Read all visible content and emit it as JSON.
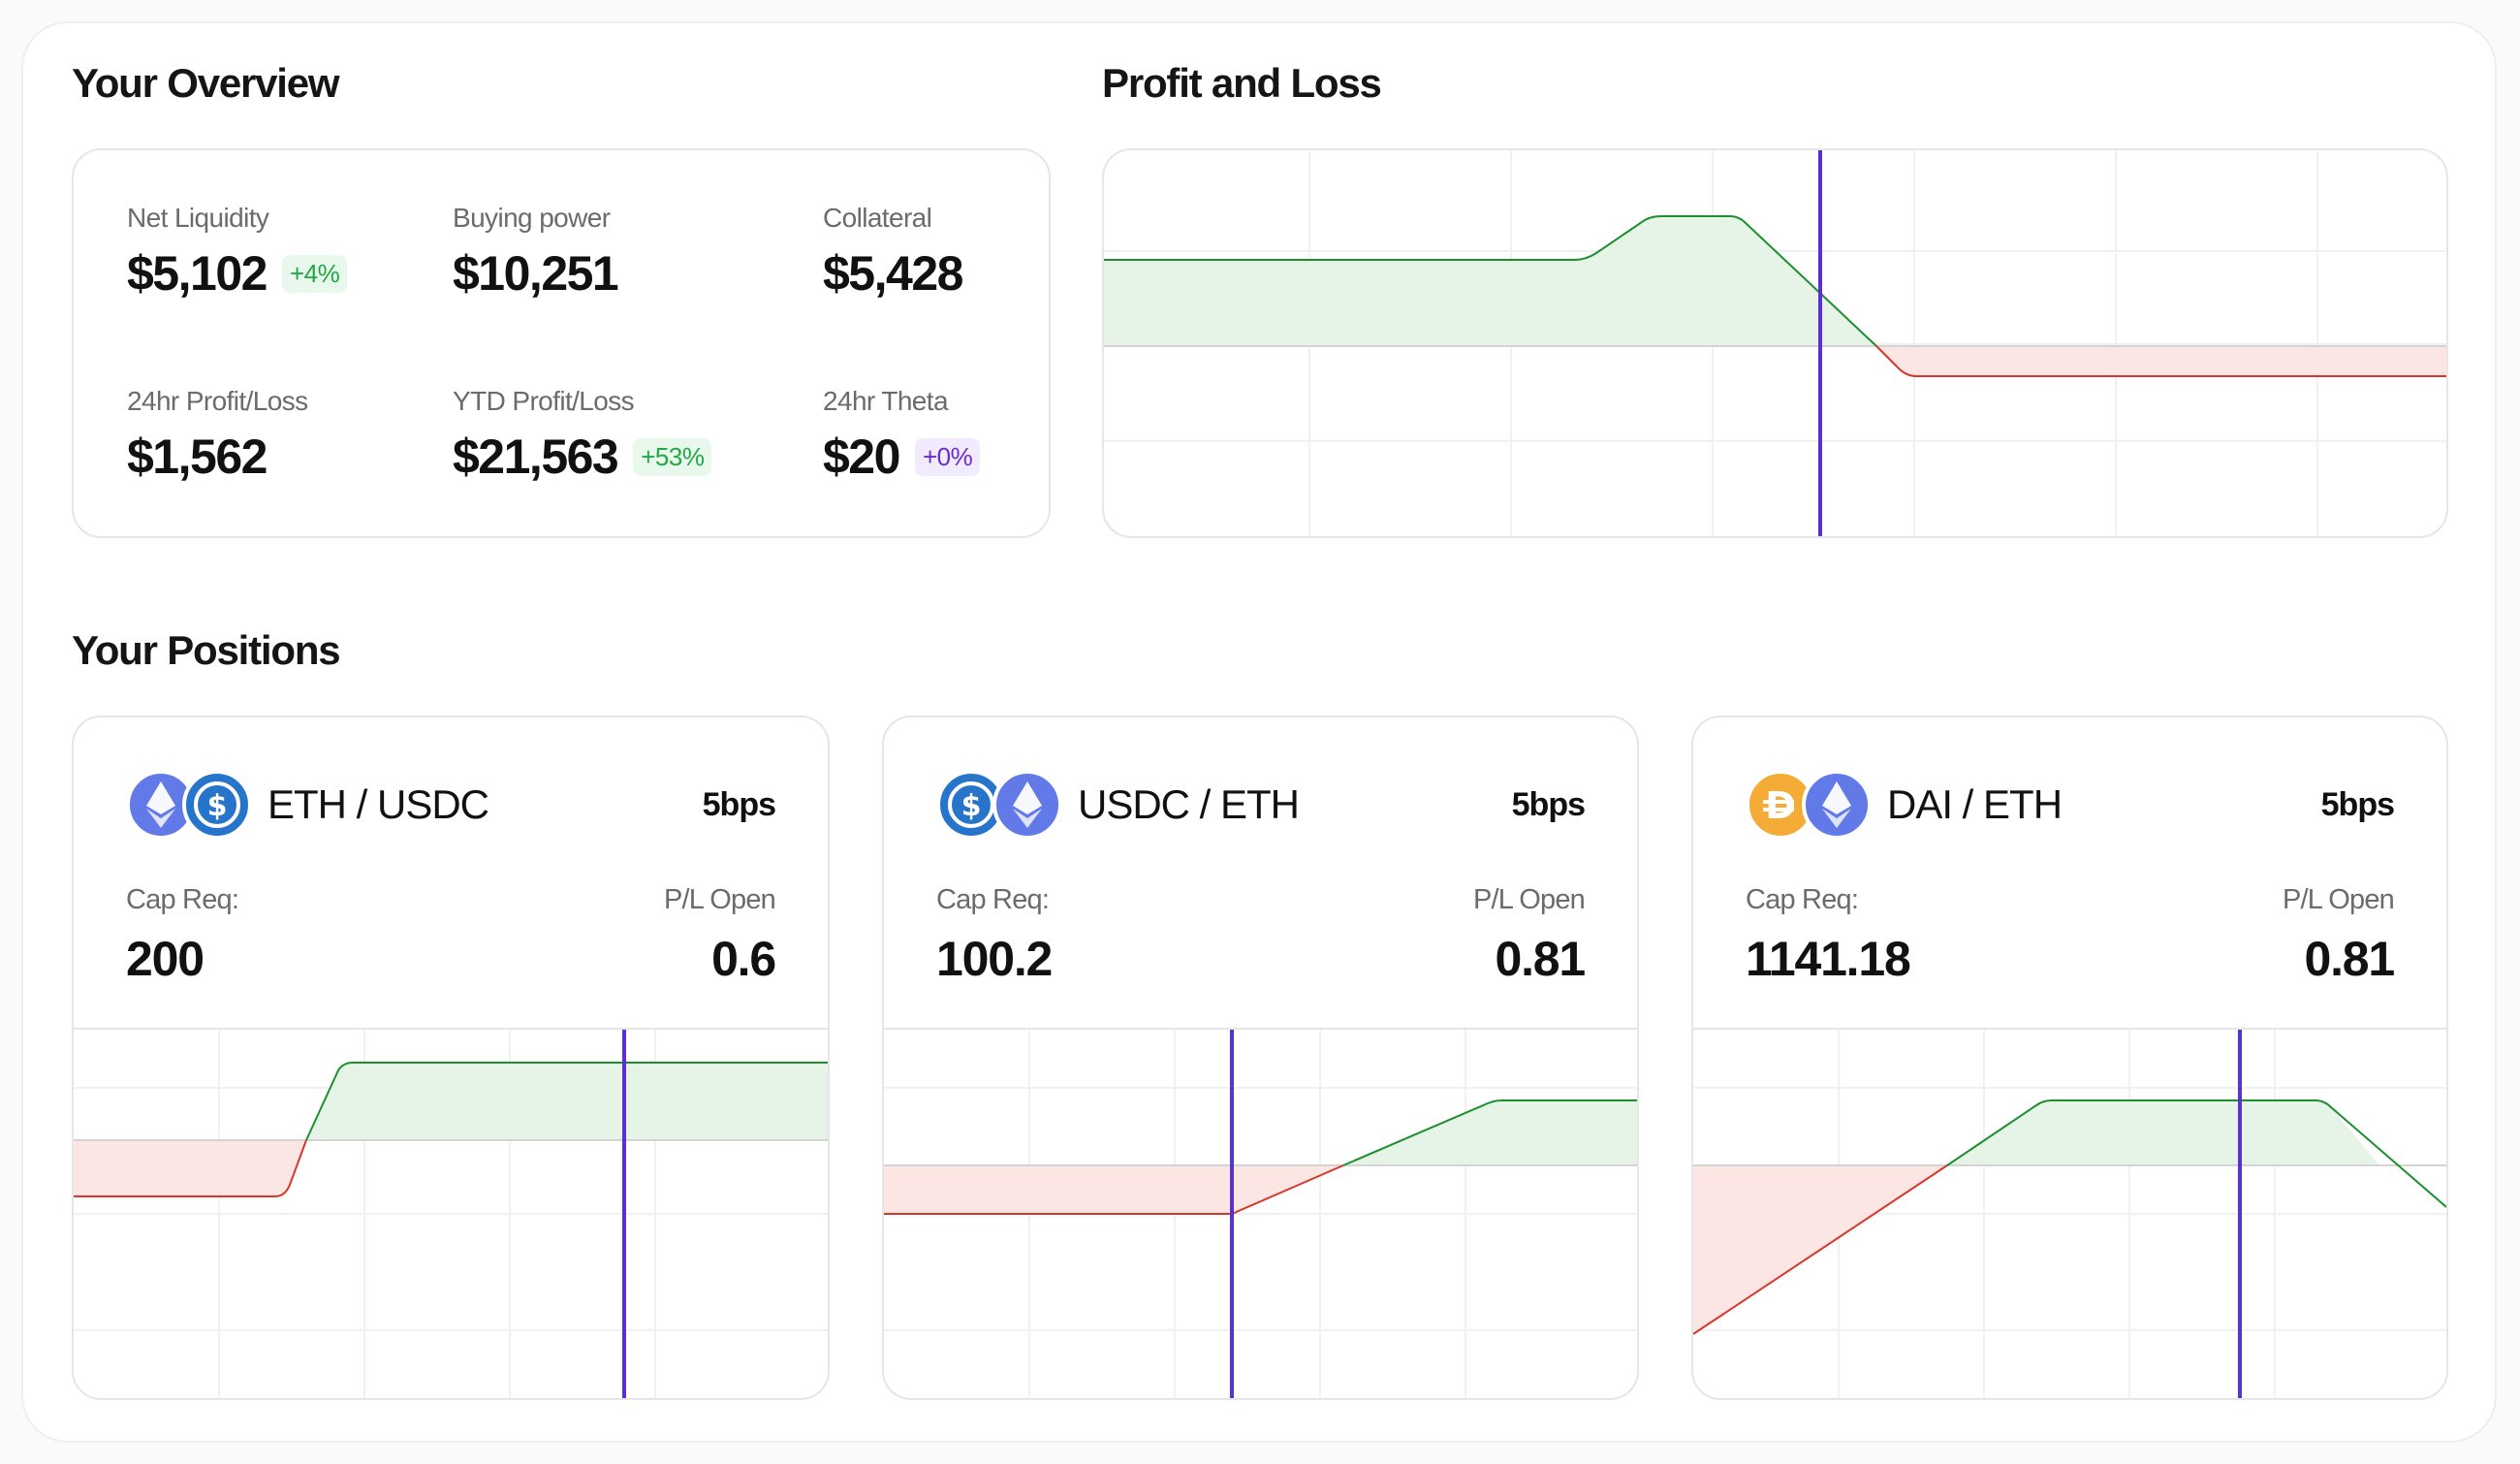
{
  "overview": {
    "title": "Your Overview",
    "stats": [
      {
        "label": "Net Liquidity",
        "value": "$5,102",
        "badge": "+4%",
        "badge_color": "green"
      },
      {
        "label": "Buying power",
        "value": "$10,251"
      },
      {
        "label": "Collateral",
        "value": "$5,428"
      },
      {
        "label": "24hr Profit/Loss",
        "value": "$1,562"
      },
      {
        "label": "YTD Profit/Loss",
        "value": "$21,563",
        "badge": "+53%",
        "badge_color": "green"
      },
      {
        "label": "24hr Theta",
        "value": "$20",
        "badge": "+0%",
        "badge_color": "purple"
      }
    ]
  },
  "pnl": {
    "title": "Profit and Loss"
  },
  "positions": {
    "title": "Your Positions",
    "cap_label": "Cap Req:",
    "pl_label": "P/L Open",
    "items": [
      {
        "pair": "ETH / USDC",
        "fee": "5bps",
        "cap": "200",
        "pl": "0.6",
        "icons": [
          "eth-icon",
          "usdc-icon"
        ]
      },
      {
        "pair": "USDC / ETH",
        "fee": "5bps",
        "cap": "100.2",
        "pl": "0.81",
        "icons": [
          "usdc-icon",
          "eth-icon"
        ]
      },
      {
        "pair": "DAI / ETH",
        "fee": "5bps",
        "cap": "1141.18",
        "pl": "0.81",
        "icons": [
          "dai-icon",
          "eth-icon"
        ]
      }
    ]
  },
  "colors": {
    "profit_line": "#1d8f2e",
    "profit_fill": "#e5f4e7",
    "loss_line": "#d9372b",
    "loss_fill": "#fce6e3",
    "current_price_line": "#5b2fd6",
    "badge_green": "#22a845",
    "badge_purple": "#6a2ec9"
  }
}
